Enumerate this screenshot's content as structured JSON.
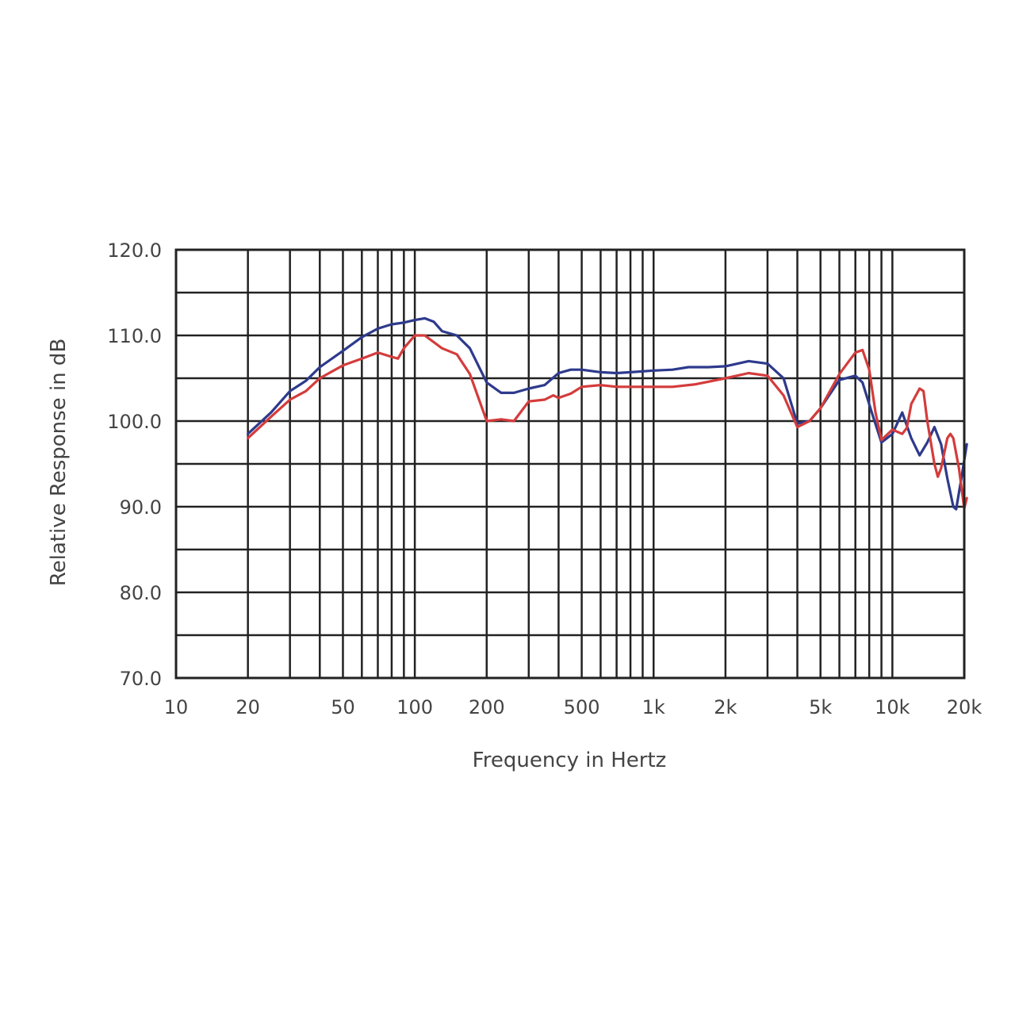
{
  "chart_data": {
    "type": "line",
    "xlabel": "Frequency in Hertz",
    "ylabel": "Relative Response in dB",
    "x_scale": "log",
    "xlim": [
      10,
      20000
    ],
    "ylim": [
      70,
      120
    ],
    "x_ticks": [
      {
        "value": 10,
        "label": "10"
      },
      {
        "value": 20,
        "label": "20"
      },
      {
        "value": 50,
        "label": "50"
      },
      {
        "value": 100,
        "label": "100"
      },
      {
        "value": 200,
        "label": "200"
      },
      {
        "value": 500,
        "label": "500"
      },
      {
        "value": 1000,
        "label": "1k"
      },
      {
        "value": 2000,
        "label": "2k"
      },
      {
        "value": 5000,
        "label": "5k"
      },
      {
        "value": 10000,
        "label": "10k"
      },
      {
        "value": 20000,
        "label": "20k"
      }
    ],
    "y_ticks": [
      {
        "value": 120,
        "label": "120.0"
      },
      {
        "value": 110,
        "label": "110.0"
      },
      {
        "value": 100,
        "label": "100.0"
      },
      {
        "value": 90,
        "label": "90.0"
      },
      {
        "value": 80,
        "label": "80.0"
      },
      {
        "value": 70,
        "label": "70.0"
      }
    ],
    "grid": true,
    "series": [
      {
        "color": "#2e3a8c",
        "points": [
          [
            20,
            98.5
          ],
          [
            25,
            101
          ],
          [
            30,
            103.5
          ],
          [
            35,
            104.7
          ],
          [
            40,
            106.3
          ],
          [
            50,
            108.2
          ],
          [
            60,
            109.8
          ],
          [
            70,
            110.8
          ],
          [
            80,
            111.3
          ],
          [
            90,
            111.5
          ],
          [
            100,
            111.8
          ],
          [
            110,
            112
          ],
          [
            120,
            111.6
          ],
          [
            130,
            110.5
          ],
          [
            150,
            110
          ],
          [
            170,
            108.5
          ],
          [
            200,
            104.5
          ],
          [
            230,
            103.3
          ],
          [
            260,
            103.3
          ],
          [
            300,
            103.8
          ],
          [
            350,
            104.2
          ],
          [
            400,
            105.6
          ],
          [
            450,
            106
          ],
          [
            500,
            106
          ],
          [
            600,
            105.7
          ],
          [
            700,
            105.6
          ],
          [
            800,
            105.7
          ],
          [
            1000,
            105.9
          ],
          [
            1200,
            106
          ],
          [
            1400,
            106.3
          ],
          [
            1700,
            106.3
          ],
          [
            2000,
            106.4
          ],
          [
            2500,
            107
          ],
          [
            3000,
            106.7
          ],
          [
            3500,
            105
          ],
          [
            4000,
            99.7
          ],
          [
            4500,
            100
          ],
          [
            5000,
            101.5
          ],
          [
            6000,
            104.8
          ],
          [
            7000,
            105.3
          ],
          [
            7500,
            104.5
          ],
          [
            8200,
            101
          ],
          [
            9000,
            97.5
          ],
          [
            10000,
            98.5
          ],
          [
            11000,
            101
          ],
          [
            12000,
            98
          ],
          [
            13000,
            96
          ],
          [
            14000,
            97.5
          ],
          [
            15000,
            99.3
          ],
          [
            16000,
            97.3
          ],
          [
            17000,
            93.3
          ],
          [
            18000,
            90
          ],
          [
            18500,
            89.7
          ],
          [
            19500,
            93.5
          ],
          [
            20500,
            97.3
          ]
        ]
      },
      {
        "color": "#d43c3c",
        "points": [
          [
            20,
            98
          ],
          [
            25,
            100.5
          ],
          [
            30,
            102.5
          ],
          [
            35,
            103.5
          ],
          [
            40,
            105
          ],
          [
            50,
            106.5
          ],
          [
            60,
            107.3
          ],
          [
            70,
            108
          ],
          [
            80,
            107.5
          ],
          [
            85,
            107.3
          ],
          [
            90,
            108.5
          ],
          [
            100,
            110
          ],
          [
            110,
            110
          ],
          [
            130,
            108.5
          ],
          [
            150,
            107.8
          ],
          [
            170,
            105.5
          ],
          [
            200,
            100
          ],
          [
            230,
            100.2
          ],
          [
            260,
            100
          ],
          [
            300,
            102.3
          ],
          [
            350,
            102.5
          ],
          [
            380,
            103
          ],
          [
            400,
            102.7
          ],
          [
            450,
            103.2
          ],
          [
            500,
            104
          ],
          [
            600,
            104.2
          ],
          [
            700,
            104
          ],
          [
            800,
            104
          ],
          [
            1000,
            104
          ],
          [
            1200,
            104
          ],
          [
            1500,
            104.3
          ],
          [
            2000,
            105
          ],
          [
            2500,
            105.6
          ],
          [
            3000,
            105.3
          ],
          [
            3500,
            103
          ],
          [
            4000,
            99.3
          ],
          [
            4500,
            100
          ],
          [
            5000,
            101.5
          ],
          [
            6000,
            105.5
          ],
          [
            7000,
            108
          ],
          [
            7500,
            108.3
          ],
          [
            8000,
            106
          ],
          [
            8500,
            101
          ],
          [
            9000,
            97.8
          ],
          [
            10000,
            99
          ],
          [
            11000,
            98.5
          ],
          [
            11500,
            99.2
          ],
          [
            12000,
            102
          ],
          [
            13000,
            103.8
          ],
          [
            13500,
            103.5
          ],
          [
            14000,
            100
          ],
          [
            15000,
            95
          ],
          [
            15500,
            93.5
          ],
          [
            16000,
            94.5
          ],
          [
            17000,
            98
          ],
          [
            17500,
            98.5
          ],
          [
            18000,
            98
          ],
          [
            19000,
            94.5
          ],
          [
            20000,
            89.8
          ],
          [
            20500,
            91
          ]
        ]
      }
    ]
  }
}
